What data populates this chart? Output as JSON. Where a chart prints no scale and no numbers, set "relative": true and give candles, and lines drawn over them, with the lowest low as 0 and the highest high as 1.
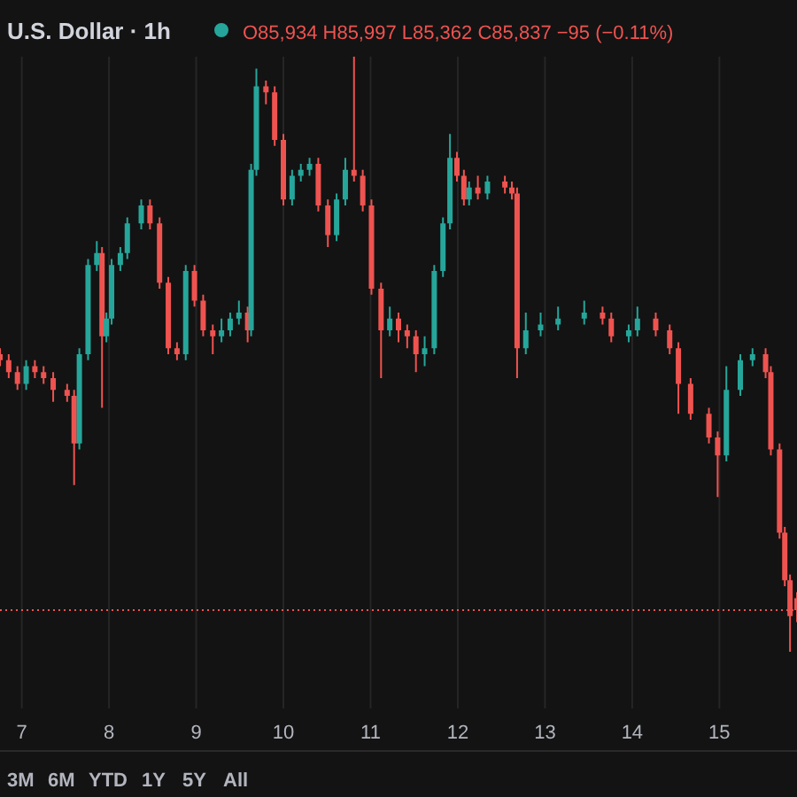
{
  "chart_data": {
    "type": "candlestick",
    "title": "U.S. Dollar · 1h",
    "relative": true,
    "annotations": [
      "O85,934 H85,997 L85,362 C85,837 −95 (−0.11%)",
      "3M",
      "6M",
      "YTD",
      "1Y",
      "5Y",
      "All"
    ],
    "x": [
      6.75,
      6.85,
      6.95,
      7.05,
      7.15,
      7.25,
      7.36,
      7.52,
      7.6,
      7.66,
      7.76,
      7.86,
      7.92,
      7.97,
      8.03,
      8.13,
      8.21,
      8.37,
      8.47,
      8.58,
      8.68,
      8.78,
      8.88,
      8.98,
      9.08,
      9.19,
      9.29,
      9.39,
      9.49,
      9.59,
      9.63,
      9.69,
      9.8,
      9.9,
      10.0,
      10.1,
      10.2,
      10.3,
      10.4,
      10.51,
      10.61,
      10.71,
      10.81,
      10.91,
      11.01,
      11.12,
      11.22,
      11.32,
      11.42,
      11.52,
      11.62,
      11.73,
      11.83,
      11.91,
      11.99,
      12.07,
      12.13,
      12.23,
      12.34,
      12.54,
      12.62,
      12.68,
      12.78,
      12.95,
      13.15,
      13.45,
      13.66,
      13.76,
      13.96,
      14.06,
      14.27,
      14.43,
      14.53,
      14.67,
      14.88,
      14.98,
      15.08,
      15.24,
      15.38,
      15.53,
      15.59,
      15.69,
      15.75,
      15.81,
      15.89
    ],
    "ohlc": [
      [
        0.5,
        0.51,
        0.48,
        0.49
      ],
      [
        0.49,
        0.5,
        0.46,
        0.47
      ],
      [
        0.47,
        0.48,
        0.44,
        0.45
      ],
      [
        0.45,
        0.49,
        0.44,
        0.48
      ],
      [
        0.48,
        0.49,
        0.46,
        0.47
      ],
      [
        0.47,
        0.48,
        0.45,
        0.46
      ],
      [
        0.46,
        0.47,
        0.42,
        0.44
      ],
      [
        0.44,
        0.45,
        0.42,
        0.43
      ],
      [
        0.43,
        0.44,
        0.28,
        0.35
      ],
      [
        0.35,
        0.51,
        0.34,
        0.5
      ],
      [
        0.5,
        0.66,
        0.49,
        0.65
      ],
      [
        0.65,
        0.69,
        0.64,
        0.67
      ],
      [
        0.67,
        0.68,
        0.41,
        0.53
      ],
      [
        0.53,
        0.57,
        0.52,
        0.56
      ],
      [
        0.56,
        0.66,
        0.55,
        0.65
      ],
      [
        0.65,
        0.68,
        0.64,
        0.67
      ],
      [
        0.67,
        0.73,
        0.66,
        0.72
      ],
      [
        0.72,
        0.76,
        0.71,
        0.75
      ],
      [
        0.75,
        0.76,
        0.71,
        0.72
      ],
      [
        0.72,
        0.73,
        0.61,
        0.62
      ],
      [
        0.62,
        0.63,
        0.5,
        0.51
      ],
      [
        0.51,
        0.52,
        0.49,
        0.5
      ],
      [
        0.5,
        0.65,
        0.49,
        0.64
      ],
      [
        0.64,
        0.65,
        0.58,
        0.59
      ],
      [
        0.59,
        0.6,
        0.53,
        0.54
      ],
      [
        0.54,
        0.55,
        0.5,
        0.53
      ],
      [
        0.53,
        0.56,
        0.52,
        0.54
      ],
      [
        0.54,
        0.57,
        0.53,
        0.56
      ],
      [
        0.56,
        0.59,
        0.55,
        0.57
      ],
      [
        0.57,
        0.58,
        0.52,
        0.54
      ],
      [
        0.54,
        0.82,
        0.53,
        0.81
      ],
      [
        0.81,
        0.98,
        0.8,
        0.95
      ],
      [
        0.95,
        0.96,
        0.92,
        0.94
      ],
      [
        0.94,
        0.95,
        0.85,
        0.86
      ],
      [
        0.86,
        0.87,
        0.75,
        0.76
      ],
      [
        0.76,
        0.81,
        0.75,
        0.8
      ],
      [
        0.8,
        0.82,
        0.79,
        0.81
      ],
      [
        0.81,
        0.83,
        0.8,
        0.82
      ],
      [
        0.82,
        0.83,
        0.74,
        0.75
      ],
      [
        0.75,
        0.76,
        0.68,
        0.7
      ],
      [
        0.7,
        0.77,
        0.69,
        0.76
      ],
      [
        0.76,
        0.83,
        0.75,
        0.81
      ],
      [
        0.81,
        1,
        0.79,
        0.8
      ],
      [
        0.8,
        0.81,
        0.74,
        0.75
      ],
      [
        0.75,
        0.76,
        0.6,
        0.61
      ],
      [
        0.61,
        0.62,
        0.46,
        0.54
      ],
      [
        0.54,
        0.58,
        0.53,
        0.56
      ],
      [
        0.56,
        0.57,
        0.52,
        0.54
      ],
      [
        0.54,
        0.55,
        0.51,
        0.53
      ],
      [
        0.53,
        0.54,
        0.47,
        0.5
      ],
      [
        0.5,
        0.53,
        0.48,
        0.51
      ],
      [
        0.51,
        0.65,
        0.5,
        0.64
      ],
      [
        0.64,
        0.73,
        0.63,
        0.72
      ],
      [
        0.72,
        0.87,
        0.71,
        0.83
      ],
      [
        0.83,
        0.84,
        0.79,
        0.8
      ],
      [
        0.8,
        0.81,
        0.75,
        0.76
      ],
      [
        0.76,
        0.79,
        0.75,
        0.78
      ],
      [
        0.78,
        0.8,
        0.76,
        0.77
      ],
      [
        0.77,
        0.8,
        0.76,
        0.79
      ],
      [
        0.79,
        0.8,
        0.77,
        0.78
      ],
      [
        0.78,
        0.79,
        0.76,
        0.77
      ],
      [
        0.77,
        0.78,
        0.46,
        0.51
      ],
      [
        0.51,
        0.57,
        0.5,
        0.54
      ],
      [
        0.54,
        0.57,
        0.53,
        0.55
      ],
      [
        0.55,
        0.58,
        0.54,
        0.56
      ],
      [
        0.56,
        0.59,
        0.55,
        0.57
      ],
      [
        0.57,
        0.58,
        0.55,
        0.56
      ],
      [
        0.56,
        0.57,
        0.52,
        0.53
      ],
      [
        0.53,
        0.55,
        0.52,
        0.54
      ],
      [
        0.54,
        0.58,
        0.53,
        0.56
      ],
      [
        0.56,
        0.57,
        0.53,
        0.54
      ],
      [
        0.54,
        0.55,
        0.5,
        0.51
      ],
      [
        0.51,
        0.52,
        0.4,
        0.45
      ],
      [
        0.45,
        0.46,
        0.39,
        0.4
      ],
      [
        0.4,
        0.41,
        0.35,
        0.36
      ],
      [
        0.36,
        0.37,
        0.26,
        0.33
      ],
      [
        0.33,
        0.48,
        0.32,
        0.44
      ],
      [
        0.44,
        0.5,
        0.43,
        0.49
      ],
      [
        0.49,
        0.51,
        0.48,
        0.5
      ],
      [
        0.5,
        0.51,
        0.46,
        0.47
      ],
      [
        0.47,
        0.48,
        0.33,
        0.34
      ],
      [
        0.34,
        0.35,
        0.19,
        0.2
      ],
      [
        0.2,
        0.21,
        0.11,
        0.12
      ],
      [
        0.12,
        0.13,
        0,
        0.06
      ],
      [
        0.09,
        0.1,
        0.05,
        0.07
      ]
    ],
    "colors": [
      "#ef5350",
      "#ef5350",
      "#ef5350",
      "#26a69a",
      "#ef5350",
      "#ef5350",
      "#ef5350",
      "#ef5350",
      "#ef5350",
      "#26a69a",
      "#26a69a",
      "#26a69a",
      "#ef5350",
      "#26a69a",
      "#26a69a",
      "#26a69a",
      "#26a69a",
      "#26a69a",
      "#ef5350",
      "#ef5350",
      "#ef5350",
      "#ef5350",
      "#26a69a",
      "#ef5350",
      "#ef5350",
      "#ef5350",
      "#26a69a",
      "#26a69a",
      "#26a69a",
      "#ef5350",
      "#26a69a",
      "#26a69a",
      "#ef5350",
      "#ef5350",
      "#ef5350",
      "#26a69a",
      "#26a69a",
      "#26a69a",
      "#ef5350",
      "#ef5350",
      "#26a69a",
      "#26a69a",
      "#ef5350",
      "#ef5350",
      "#ef5350",
      "#ef5350",
      "#26a69a",
      "#ef5350",
      "#ef5350",
      "#ef5350",
      "#26a69a",
      "#26a69a",
      "#26a69a",
      "#26a69a",
      "#ef5350",
      "#ef5350",
      "#26a69a",
      "#ef5350",
      "#26a69a",
      "#ef5350",
      "#ef5350",
      "#ef5350",
      "#26a69a",
      "#26a69a",
      "#26a69a",
      "#26a69a",
      "#ef5350",
      "#ef5350",
      "#26a69a",
      "#26a69a",
      "#ef5350",
      "#ef5350",
      "#ef5350",
      "#ef5350",
      "#ef5350",
      "#ef5350",
      "#26a69a",
      "#26a69a",
      "#26a69a",
      "#ef5350",
      "#ef5350",
      "#ef5350",
      "#ef5350",
      "#ef5350",
      "#ef5350"
    ],
    "xlim": [
      6.75,
      15.89
    ],
    "xticks": [
      7,
      8,
      9,
      10,
      11,
      12,
      13,
      14,
      15
    ],
    "grid": "x",
    "ref_lines": [
      {
        "axis": "y",
        "value": 0.07,
        "color": "#ef5350",
        "line_style": "dotted"
      }
    ]
  }
}
